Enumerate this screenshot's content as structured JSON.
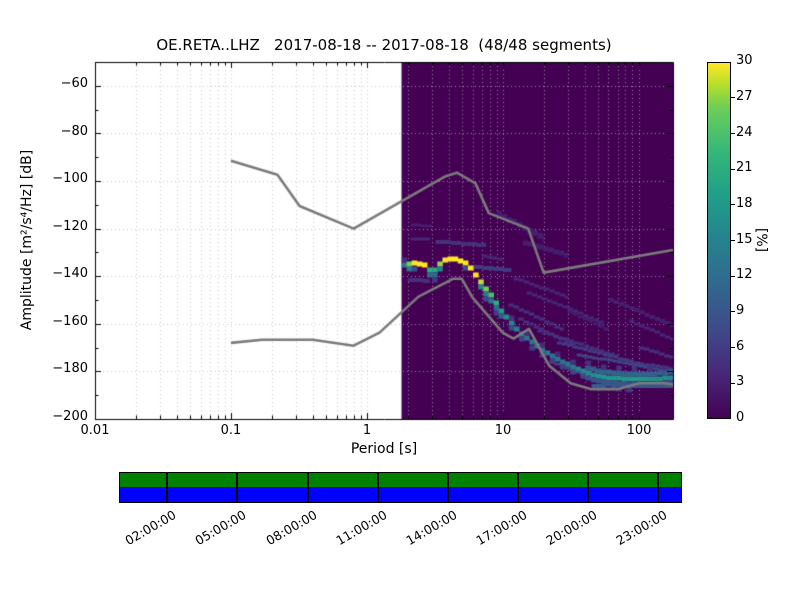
{
  "title": "OE.RETA..LHZ   2017-08-18 -- 2017-08-18  (48/48 segments)",
  "chart_data": {
    "type": "heatmap",
    "title": "OE.RETA..LHZ   2017-08-18 -- 2017-08-18  (48/48 segments)",
    "xlabel": "Period [s]",
    "ylabel": "Amplitude [m²/s⁴/Hz] [dB]",
    "x_scale": "log",
    "xlim": [
      0.01,
      179
    ],
    "ylim": [
      -200,
      -50
    ],
    "grid": true,
    "x_tick_labels": [
      "0.01",
      "0.1",
      "1",
      "10",
      "100"
    ],
    "x_tick_values": [
      0.01,
      0.1,
      1,
      10,
      100
    ],
    "y_tick_labels": [
      "−60",
      "−80",
      "−100",
      "−120",
      "−140",
      "−160",
      "−180",
      "−200"
    ],
    "y_tick_values": [
      -60,
      -80,
      -100,
      -120,
      -140,
      -160,
      -180,
      -200
    ],
    "colorbar": {
      "label": "[%]",
      "min": 0,
      "max": 30,
      "tick_values": [
        0,
        3,
        6,
        9,
        12,
        15,
        18,
        21,
        24,
        27,
        30
      ],
      "colormap": "viridis"
    },
    "histogram": {
      "description": "PPSD probability histogram; percent of 48 segments per period/dB cell",
      "period_range": [
        1.8,
        179
      ],
      "background_percent": 0,
      "mode_ridge": [
        [
          1.8,
          -135.5,
          14
        ],
        [
          1.95,
          -134.8,
          26
        ],
        [
          2.15,
          -134.6,
          30
        ],
        [
          2.6,
          -135.2,
          30
        ],
        [
          2.9,
          -138.6,
          15
        ],
        [
          3.15,
          -136.0,
          25
        ],
        [
          3.5,
          -133.3,
          30
        ],
        [
          4.2,
          -132.6,
          30
        ],
        [
          5.0,
          -134.0,
          30
        ],
        [
          5.7,
          -137.4,
          30
        ],
        [
          6.2,
          -140.3,
          30
        ],
        [
          6.7,
          -142.9,
          28
        ],
        [
          7.3,
          -145.8,
          26
        ],
        [
          8.0,
          -148.7,
          23
        ],
        [
          8.6,
          -151.3,
          21
        ],
        [
          9.4,
          -155.0,
          18
        ],
        [
          10.6,
          -158.4,
          16
        ],
        [
          11.7,
          -161.3,
          15
        ],
        [
          13.0,
          -164.0,
          14
        ],
        [
          14.5,
          -166.3,
          13
        ],
        [
          16.5,
          -168.8,
          13
        ],
        [
          18.5,
          -170.8,
          13
        ],
        [
          21,
          -172.8,
          13
        ],
        [
          24,
          -174.8,
          13
        ],
        [
          27,
          -176.3,
          13
        ],
        [
          31,
          -178.0,
          14
        ],
        [
          36,
          -179.6,
          15
        ],
        [
          42,
          -181.0,
          16
        ],
        [
          48,
          -181.9,
          17
        ],
        [
          56,
          -182.5,
          18
        ],
        [
          66,
          -182.9,
          18
        ],
        [
          80,
          -183.3,
          18
        ],
        [
          95,
          -183.4,
          18
        ],
        [
          115,
          -183.3,
          17
        ],
        [
          140,
          -183.0,
          17
        ],
        [
          165,
          -182.6,
          16
        ],
        [
          179,
          -182.4,
          16
        ]
      ],
      "secondary_streaks": [
        [
          2.1,
          -118.5,
          3.0,
          -119.0,
          3,
          3
        ],
        [
          2.1,
          -124.5,
          2.9,
          -124.5,
          4,
          3
        ],
        [
          3.2,
          -125.5,
          7.5,
          -127.0,
          5,
          4
        ],
        [
          9,
          -114,
          20,
          -124.5,
          3,
          6
        ],
        [
          14,
          -126,
          30,
          -131.5,
          3,
          5
        ],
        [
          6,
          -136,
          11.5,
          -137.5,
          6,
          4
        ],
        [
          7,
          -131.5,
          10,
          -133.5,
          4,
          3
        ],
        [
          2.0,
          -141.5,
          2.9,
          -142.0,
          5,
          4
        ],
        [
          12,
          -141,
          30,
          -149,
          4,
          3
        ],
        [
          15,
          -147,
          55,
          -160,
          4,
          3
        ],
        [
          11,
          -152,
          28,
          -163,
          5,
          3
        ],
        [
          13,
          -158,
          35,
          -170,
          5,
          3
        ],
        [
          18,
          -163,
          70,
          -174,
          5,
          3
        ],
        [
          25,
          -168,
          120,
          -178,
          6,
          3
        ],
        [
          35,
          -173,
          179,
          -180.5,
          7,
          3
        ],
        [
          22,
          -176,
          45,
          -183,
          7,
          3
        ],
        [
          45,
          -186.3,
          179,
          -186.3,
          10,
          4
        ],
        [
          60,
          -150,
          179,
          -161,
          3,
          4
        ],
        [
          85,
          -159,
          179,
          -167,
          4,
          3
        ],
        [
          30,
          -155,
          60,
          -163,
          3,
          3
        ],
        [
          100,
          -170,
          179,
          -174.5,
          5,
          3
        ],
        [
          120,
          -177.5,
          179,
          -179,
          6,
          3
        ]
      ]
    },
    "noise_models": {
      "color": "#7b7b7b",
      "nhnm": [
        [
          0.1,
          -91.5
        ],
        [
          0.22,
          -97.4
        ],
        [
          0.32,
          -110.5
        ],
        [
          0.8,
          -120.0
        ],
        [
          3.8,
          -98.0
        ],
        [
          4.6,
          -96.5
        ],
        [
          6.3,
          -101.0
        ],
        [
          7.9,
          -113.5
        ],
        [
          15.4,
          -120.0
        ],
        [
          20.0,
          -138.5
        ],
        [
          179.0,
          -129.0
        ]
      ],
      "nlnm": [
        [
          0.1,
          -168.0
        ],
        [
          0.17,
          -166.7
        ],
        [
          0.4,
          -166.7
        ],
        [
          0.8,
          -169.2
        ],
        [
          1.24,
          -163.7
        ],
        [
          2.4,
          -148.6
        ],
        [
          4.3,
          -141.1
        ],
        [
          5.0,
          -141.1
        ],
        [
          6.0,
          -149.0
        ],
        [
          10.0,
          -163.7
        ],
        [
          12.0,
          -166.2
        ],
        [
          15.6,
          -162.1
        ],
        [
          21.9,
          -177.5
        ],
        [
          31.6,
          -185.0
        ],
        [
          45.0,
          -187.5
        ],
        [
          70.0,
          -187.5
        ],
        [
          101.0,
          -185.0
        ],
        [
          154.0,
          -185.0
        ],
        [
          179.0,
          -185.5
        ]
      ]
    },
    "timeline": {
      "tick_labels": [
        "02:00:00",
        "05:00:00",
        "08:00:00",
        "11:00:00",
        "14:00:00",
        "17:00:00",
        "20:00:00",
        "23:00:00"
      ],
      "tick_hours": [
        2,
        5,
        8,
        11,
        14,
        17,
        20,
        23
      ],
      "data_color": "#008000",
      "coverage_color": "#0000ff"
    }
  }
}
